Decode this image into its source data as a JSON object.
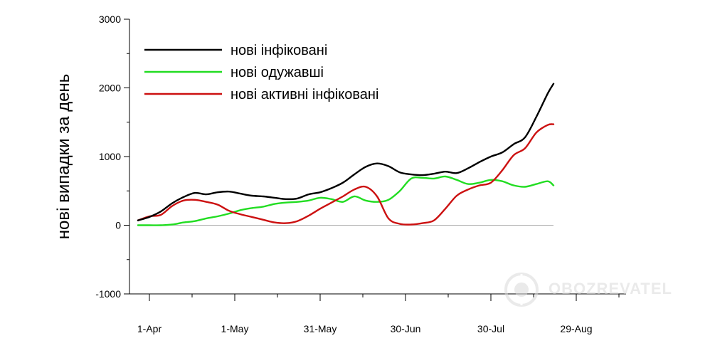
{
  "chart_data": {
    "type": "line",
    "title": "",
    "xlabel": "",
    "ylabel": "нові випадки за день",
    "ylim": [
      -1000,
      3000
    ],
    "yticks": [
      -1000,
      0,
      1000,
      2000,
      3000
    ],
    "yticklabels": [
      "-1000",
      "0",
      "1000",
      "2000",
      "3000"
    ],
    "xlim": [
      0,
      170
    ],
    "xticks": [
      {
        "label": "1-Apr",
        "x": 0
      },
      {
        "label": "1-May",
        "x": 30
      },
      {
        "label": "31-May",
        "x": 60
      },
      {
        "label": "30-Jun",
        "x": 90
      },
      {
        "label": "30-Jul",
        "x": 120
      },
      {
        "label": "29-Aug",
        "x": 150
      }
    ],
    "grid": false,
    "legend_position": "top-left",
    "zero_line": true,
    "x": [
      -4,
      0,
      4,
      8,
      12,
      16,
      20,
      24,
      28,
      32,
      36,
      40,
      44,
      48,
      52,
      56,
      60,
      64,
      68,
      72,
      76,
      80,
      84,
      88,
      92,
      96,
      100,
      104,
      108,
      112,
      116,
      120,
      124,
      128,
      132,
      136,
      140,
      142
    ],
    "series": [
      {
        "name": "нові інфіковані",
        "color": "#000000",
        "values": [
          70,
          120,
          200,
          320,
          410,
          470,
          450,
          480,
          490,
          460,
          430,
          420,
          400,
          380,
          390,
          450,
          480,
          540,
          620,
          740,
          850,
          900,
          860,
          770,
          740,
          730,
          750,
          780,
          760,
          830,
          920,
          1000,
          1060,
          1180,
          1280,
          1580,
          1920,
          2060
        ]
      },
      {
        "name": "нові одужавші",
        "color": "#22dd22",
        "values": [
          0,
          0,
          0,
          10,
          40,
          60,
          100,
          130,
          170,
          220,
          250,
          270,
          310,
          330,
          340,
          360,
          400,
          380,
          340,
          420,
          360,
          340,
          370,
          500,
          680,
          690,
          680,
          710,
          660,
          600,
          620,
          660,
          640,
          580,
          560,
          600,
          640,
          580
        ]
      },
      {
        "name": "нові активні інфіковані",
        "color": "#cc1111",
        "values": [
          70,
          130,
          150,
          280,
          360,
          370,
          340,
          300,
          210,
          160,
          120,
          80,
          40,
          30,
          60,
          140,
          240,
          330,
          420,
          520,
          560,
          420,
          100,
          20,
          10,
          30,
          70,
          240,
          430,
          520,
          580,
          620,
          800,
          1020,
          1120,
          1350,
          1460,
          1470
        ]
      }
    ]
  },
  "watermark": {
    "text": "OBOZREVATEL"
  }
}
